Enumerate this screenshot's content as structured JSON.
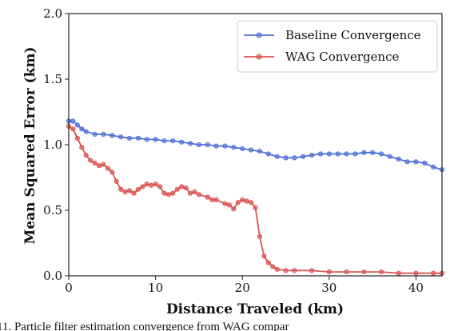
{
  "chart_data": {
    "type": "line",
    "title": "",
    "xlabel": "Distance Traveled (km)",
    "ylabel": "Mean Squared Error (km)",
    "xlim": [
      0,
      43
    ],
    "ylim": [
      0.0,
      2.0
    ],
    "x_ticks": [
      0,
      10,
      20,
      30,
      40
    ],
    "x_tick_labels": [
      "0",
      "10",
      "20",
      "30",
      "40"
    ],
    "y_ticks": [
      0.0,
      0.5,
      1.0,
      1.5,
      2.0
    ],
    "y_tick_labels": [
      "0.0",
      "0.5",
      "1.0",
      "1.5",
      "2.0"
    ],
    "grid": false,
    "legend_position": "top-right",
    "series": [
      {
        "name": "Baseline Convergence",
        "color": "#4f6fd8",
        "marker": "circle",
        "points": [
          [
            0.0,
            1.18
          ],
          [
            0.5,
            1.18
          ],
          [
            1.0,
            1.15
          ],
          [
            1.5,
            1.12
          ],
          [
            2.0,
            1.1
          ],
          [
            3.0,
            1.08
          ],
          [
            4.0,
            1.08
          ],
          [
            5.0,
            1.07
          ],
          [
            6.0,
            1.06
          ],
          [
            7.0,
            1.05
          ],
          [
            8.0,
            1.05
          ],
          [
            9.0,
            1.04
          ],
          [
            10.0,
            1.04
          ],
          [
            11.0,
            1.03
          ],
          [
            12.0,
            1.03
          ],
          [
            13.0,
            1.02
          ],
          [
            14.0,
            1.01
          ],
          [
            15.0,
            1.0
          ],
          [
            16.0,
            1.0
          ],
          [
            17.0,
            0.99
          ],
          [
            18.0,
            0.99
          ],
          [
            19.0,
            0.98
          ],
          [
            20.0,
            0.97
          ],
          [
            21.0,
            0.96
          ],
          [
            22.0,
            0.95
          ],
          [
            23.0,
            0.93
          ],
          [
            24.0,
            0.91
          ],
          [
            25.0,
            0.9
          ],
          [
            26.0,
            0.9
          ],
          [
            27.0,
            0.91
          ],
          [
            28.0,
            0.92
          ],
          [
            29.0,
            0.93
          ],
          [
            30.0,
            0.93
          ],
          [
            31.0,
            0.93
          ],
          [
            32.0,
            0.93
          ],
          [
            33.0,
            0.93
          ],
          [
            34.0,
            0.94
          ],
          [
            35.0,
            0.94
          ],
          [
            36.0,
            0.93
          ],
          [
            37.0,
            0.91
          ],
          [
            38.0,
            0.89
          ],
          [
            39.0,
            0.87
          ],
          [
            40.0,
            0.87
          ],
          [
            41.0,
            0.86
          ],
          [
            42.0,
            0.83
          ],
          [
            43.0,
            0.81
          ]
        ]
      },
      {
        "name": "WAG Convergence",
        "color": "#d9534f",
        "marker": "circle",
        "points": [
          [
            0.0,
            1.14
          ],
          [
            0.5,
            1.12
          ],
          [
            1.0,
            1.05
          ],
          [
            1.5,
            0.98
          ],
          [
            2.0,
            0.92
          ],
          [
            2.5,
            0.88
          ],
          [
            3.0,
            0.86
          ],
          [
            3.5,
            0.84
          ],
          [
            4.0,
            0.85
          ],
          [
            4.5,
            0.82
          ],
          [
            5.0,
            0.79
          ],
          [
            5.5,
            0.72
          ],
          [
            6.0,
            0.66
          ],
          [
            6.5,
            0.64
          ],
          [
            7.0,
            0.65
          ],
          [
            7.5,
            0.63
          ],
          [
            8.0,
            0.66
          ],
          [
            8.5,
            0.68
          ],
          [
            9.0,
            0.7
          ],
          [
            9.5,
            0.69
          ],
          [
            10.0,
            0.7
          ],
          [
            10.5,
            0.68
          ],
          [
            11.0,
            0.63
          ],
          [
            11.5,
            0.62
          ],
          [
            12.0,
            0.63
          ],
          [
            12.5,
            0.66
          ],
          [
            13.0,
            0.68
          ],
          [
            13.5,
            0.67
          ],
          [
            14.0,
            0.63
          ],
          [
            14.5,
            0.64
          ],
          [
            15.0,
            0.62
          ],
          [
            16.0,
            0.6
          ],
          [
            16.5,
            0.58
          ],
          [
            17.0,
            0.58
          ],
          [
            18.0,
            0.55
          ],
          [
            18.5,
            0.54
          ],
          [
            19.0,
            0.51
          ],
          [
            19.5,
            0.56
          ],
          [
            20.0,
            0.58
          ],
          [
            20.5,
            0.57
          ],
          [
            21.0,
            0.56
          ],
          [
            21.5,
            0.52
          ],
          [
            22.0,
            0.3
          ],
          [
            22.5,
            0.15
          ],
          [
            23.0,
            0.1
          ],
          [
            23.5,
            0.07
          ],
          [
            24.0,
            0.05
          ],
          [
            25.0,
            0.04
          ],
          [
            26.0,
            0.04
          ],
          [
            28.0,
            0.04
          ],
          [
            30.0,
            0.03
          ],
          [
            32.0,
            0.03
          ],
          [
            34.0,
            0.03
          ],
          [
            36.0,
            0.03
          ],
          [
            38.0,
            0.02
          ],
          [
            40.0,
            0.02
          ],
          [
            42.0,
            0.02
          ],
          [
            43.0,
            0.02
          ]
        ]
      }
    ]
  },
  "caption": {
    "text": "11.   Particle filter estimation convergence from WAG compar"
  }
}
